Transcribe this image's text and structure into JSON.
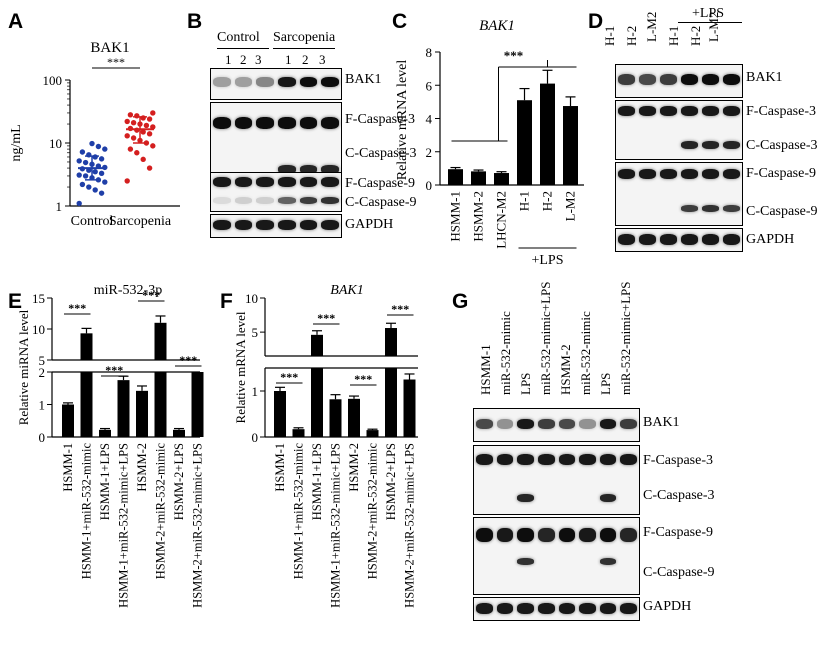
{
  "panel_letters": [
    "A",
    "B",
    "C",
    "D",
    "E",
    "F",
    "G"
  ],
  "sig": "***",
  "western_blot_bands": {
    "BAK1": "BAK1",
    "F_Caspase_3": "F-Caspase-3",
    "C_Caspase_3": "C-Caspase-3",
    "F_Caspase_9": "F-Caspase-9",
    "C_Caspase_9": "C-Caspase-9",
    "GAPDH": "GAPDH"
  },
  "panel_b": {
    "group_control": "Control",
    "group_sarcopenia": "Sarcopenia",
    "lanes": [
      "1",
      "2",
      "3",
      "1",
      "2",
      "3"
    ]
  },
  "panel_d": {
    "lanes": [
      "H-1",
      "H-2",
      "L-M2",
      "H-1",
      "H-2",
      "L-M2"
    ],
    "group_lps": "+LPS"
  },
  "panel_g": {
    "lanes": [
      "HSMM-1",
      "miR-532-mimic",
      "LPS",
      "miR-532-mimic+LPS",
      "HSMM-2",
      "miR-532-mimic",
      "LPS",
      "miR-532-mimic+LPS"
    ]
  },
  "chart_data": [
    {
      "panel": "A",
      "type": "scatter",
      "title": "BAK1",
      "ylabel": "ng/mL",
      "yscale": "log",
      "ylim": [
        1,
        100
      ],
      "yticks": [
        "1",
        "10",
        "100"
      ],
      "categories": [
        "Control",
        "Sarcopenia"
      ],
      "series": [
        {
          "name": "Control",
          "color": "#1f3fa8",
          "mean": 4.0,
          "sd_low": 2.6,
          "sd_high": 6.2,
          "values": [
            1.1,
            1.6,
            1.8,
            2.0,
            2.2,
            2.4,
            2.6,
            2.8,
            3.0,
            3.1,
            3.3,
            3.5,
            3.7,
            3.9,
            4.1,
            4.3,
            4.6,
            4.9,
            5.2,
            5.6,
            6.0,
            6.5,
            7.2,
            8.0,
            8.8,
            9.8
          ]
        },
        {
          "name": "Sarcopenia",
          "color": "#d41f1f",
          "mean": 16.5,
          "sd_low": 10.0,
          "sd_high": 26.0,
          "values": [
            2.5,
            4.0,
            5.5,
            7.0,
            8.0,
            9.0,
            10.0,
            11.0,
            12.0,
            13.0,
            14.0,
            15.0,
            16.0,
            17.0,
            18.0,
            19.0,
            20.0,
            21.0,
            22.0,
            24.0,
            25.0,
            27.0,
            28.0,
            30.0
          ]
        }
      ]
    },
    {
      "panel": "C",
      "type": "bar",
      "title": "BAK1",
      "ylabel": "Relative mRNA level",
      "ylim": [
        0,
        8
      ],
      "yticks": [
        "0",
        "2",
        "4",
        "6",
        "8"
      ],
      "categories": [
        "HSMM-1",
        "HSMM-2",
        "LHCN-M2",
        "H-1",
        "H-2",
        "L-M2"
      ],
      "group_label": "+LPS",
      "values": [
        0.95,
        0.82,
        0.72,
        5.1,
        6.1,
        4.75
      ],
      "errors": [
        0.1,
        0.08,
        0.08,
        0.7,
        0.8,
        0.55
      ]
    },
    {
      "panel": "E",
      "type": "bar",
      "title": "miR-532-3p",
      "ylabel": "Relative miRNA level",
      "broken_axis": true,
      "ylim_lower": [
        0,
        2
      ],
      "ylim_upper": [
        5,
        15
      ],
      "yticks_lower": [
        "0",
        "1",
        "2"
      ],
      "yticks_upper": [
        "5",
        "10",
        "15"
      ],
      "categories": [
        "HSMM-1",
        "HSMM-1+miR-532-mimic",
        "HSMM-1+LPS",
        "HSMM-1+miR-532-mimic+LPS",
        "HSMM-2",
        "HSMM-2+miR-532-mimic",
        "HSMM-2+LPS",
        "HSMM-2+miR-532-mimic+LPS"
      ],
      "values": [
        1.0,
        9.3,
        0.22,
        1.75,
        1.42,
        11.0,
        0.22,
        2.15
      ],
      "errors": [
        0.05,
        0.8,
        0.04,
        0.12,
        0.15,
        1.1,
        0.04,
        0.2
      ]
    },
    {
      "panel": "F",
      "type": "bar",
      "title": "BAK1",
      "ylabel": "Relative mRNA level",
      "broken_axis": true,
      "ylim_lower": [
        0,
        1.5
      ],
      "ylim_upper": [
        1.5,
        10
      ],
      "yticks_lower": [
        "0",
        "1"
      ],
      "yticks_upper": [
        "5",
        "10"
      ],
      "categories": [
        "HSMM-1",
        "HSMM-1+miR-532-mimic",
        "HSMM-1+LPS",
        "HSMM-1+miR-532-mimic+LPS",
        "HSMM-2",
        "HSMM-2+miR-532-mimic",
        "HSMM-2+LPS",
        "HSMM-2+miR-532-mimic+LPS"
      ],
      "values": [
        1.0,
        0.17,
        4.6,
        0.82,
        0.83,
        0.15,
        5.6,
        1.25
      ],
      "errors": [
        0.08,
        0.03,
        0.6,
        0.1,
        0.06,
        0.02,
        0.7,
        0.12
      ]
    }
  ]
}
